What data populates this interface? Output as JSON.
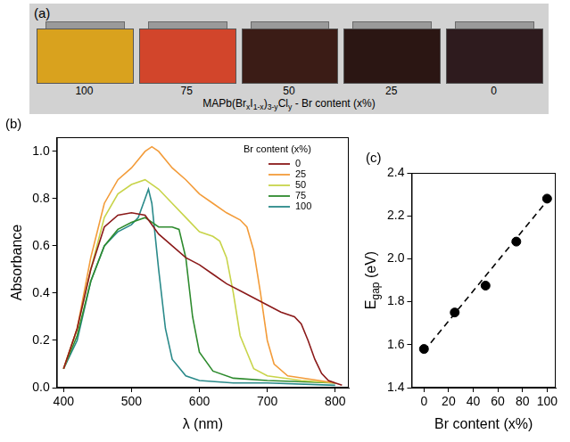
{
  "panel_a": {
    "letter": "(a)",
    "samples": [
      {
        "label": "100",
        "color": "#d9a21e"
      },
      {
        "label": "75",
        "color": "#d2452b"
      },
      {
        "label": "50",
        "color": "#3b1c16"
      },
      {
        "label": "25",
        "color": "#2b1613"
      },
      {
        "label": "0",
        "color": "#2e1b1e"
      }
    ],
    "caption": [
      "MAPb(Br",
      {
        "sub": "x"
      },
      "I",
      {
        "sub": "1-x"
      },
      ")",
      {
        "sub": "3-y"
      },
      "Cl",
      {
        "sub": "y"
      },
      " - Br content (x%)"
    ]
  },
  "chart_data": [
    {
      "letter": "(b)",
      "type": "line",
      "xlabel": "λ (nm)",
      "ylabel": "Absorbance",
      "xlim": [
        390,
        820
      ],
      "xticks": [
        400,
        500,
        600,
        700,
        800
      ],
      "ylim": [
        0,
        1.06
      ],
      "yticks": [
        {
          "value": 0,
          "label": "0.0"
        },
        {
          "value": 0.2,
          "label": "0.2"
        },
        {
          "value": 0.4,
          "label": "0.4"
        },
        {
          "value": 0.6,
          "label": "0.6"
        },
        {
          "value": 0.8,
          "label": "0.8"
        },
        {
          "value": 1,
          "label": "1.0"
        }
      ],
      "grid": false,
      "legend": "upper right",
      "legend_title": "Br content (x%)",
      "series": [
        {
          "name": "0",
          "color": "#8b1a1a",
          "x": [
            400,
            420,
            440,
            460,
            480,
            500,
            520,
            540,
            560,
            580,
            600,
            620,
            640,
            660,
            680,
            700,
            720,
            740,
            750,
            760,
            770,
            780,
            790,
            800,
            810
          ],
          "values": [
            0.08,
            0.25,
            0.5,
            0.68,
            0.73,
            0.74,
            0.73,
            0.65,
            0.6,
            0.55,
            0.52,
            0.48,
            0.44,
            0.41,
            0.38,
            0.35,
            0.32,
            0.3,
            0.27,
            0.2,
            0.12,
            0.06,
            0.03,
            0.02,
            0.01
          ]
        },
        {
          "name": "25",
          "color": "#f39c3a",
          "x": [
            400,
            420,
            440,
            460,
            480,
            500,
            520,
            530,
            540,
            560,
            580,
            600,
            620,
            640,
            660,
            670,
            680,
            690,
            700,
            710,
            730,
            800
          ],
          "values": [
            0.08,
            0.25,
            0.55,
            0.78,
            0.88,
            0.93,
            1.0,
            1.02,
            1.0,
            0.93,
            0.88,
            0.82,
            0.78,
            0.74,
            0.71,
            0.68,
            0.58,
            0.4,
            0.2,
            0.1,
            0.05,
            0.02
          ]
        },
        {
          "name": "50",
          "color": "#c8d44a",
          "x": [
            400,
            420,
            440,
            460,
            480,
            500,
            520,
            540,
            560,
            580,
            600,
            620,
            630,
            640,
            650,
            660,
            680,
            700,
            750,
            800
          ],
          "values": [
            0.08,
            0.25,
            0.5,
            0.72,
            0.82,
            0.86,
            0.88,
            0.84,
            0.78,
            0.72,
            0.66,
            0.64,
            0.62,
            0.55,
            0.4,
            0.22,
            0.08,
            0.05,
            0.03,
            0.02
          ]
        },
        {
          "name": "75",
          "color": "#2e8b2e",
          "x": [
            400,
            420,
            440,
            460,
            480,
            500,
            520,
            540,
            560,
            570,
            580,
            590,
            600,
            620,
            650,
            700,
            800
          ],
          "values": [
            0.08,
            0.22,
            0.45,
            0.6,
            0.67,
            0.7,
            0.72,
            0.68,
            0.68,
            0.67,
            0.55,
            0.3,
            0.15,
            0.07,
            0.04,
            0.03,
            0.02
          ]
        },
        {
          "name": "100",
          "color": "#2a8a8a",
          "x": [
            400,
            420,
            440,
            460,
            480,
            500,
            510,
            520,
            525,
            530,
            540,
            550,
            560,
            580,
            600,
            650,
            700,
            800
          ],
          "values": [
            0.08,
            0.2,
            0.45,
            0.6,
            0.66,
            0.69,
            0.72,
            0.8,
            0.84,
            0.78,
            0.5,
            0.25,
            0.12,
            0.05,
            0.03,
            0.02,
            0.02,
            0.01
          ]
        }
      ]
    },
    {
      "letter": "(c)",
      "type": "scatter",
      "xlabel": "Br content (x%)",
      "ylabel": [
        "E",
        {
          "sub": "gap"
        },
        " (eV)"
      ],
      "xlim": [
        -10,
        107
      ],
      "xticks": [
        0,
        20,
        40,
        60,
        80,
        100
      ],
      "ylim": [
        1.4,
        2.4
      ],
      "yticks": [
        1.4,
        1.6,
        1.8,
        {
          "value": 2,
          "label": "2.0"
        },
        2.2,
        2.4
      ],
      "grid": false,
      "series": [
        {
          "type": "line",
          "line_style": "dashed",
          "color": "#000000",
          "x": [
            0,
            100
          ],
          "values": [
            1.57,
            2.27
          ]
        },
        {
          "type": "scatter",
          "marker": "circle",
          "color": "#000000",
          "x": [
            0,
            25,
            50,
            75,
            100
          ],
          "values": [
            1.58,
            1.75,
            1.875,
            2.08,
            2.28
          ]
        }
      ]
    }
  ]
}
